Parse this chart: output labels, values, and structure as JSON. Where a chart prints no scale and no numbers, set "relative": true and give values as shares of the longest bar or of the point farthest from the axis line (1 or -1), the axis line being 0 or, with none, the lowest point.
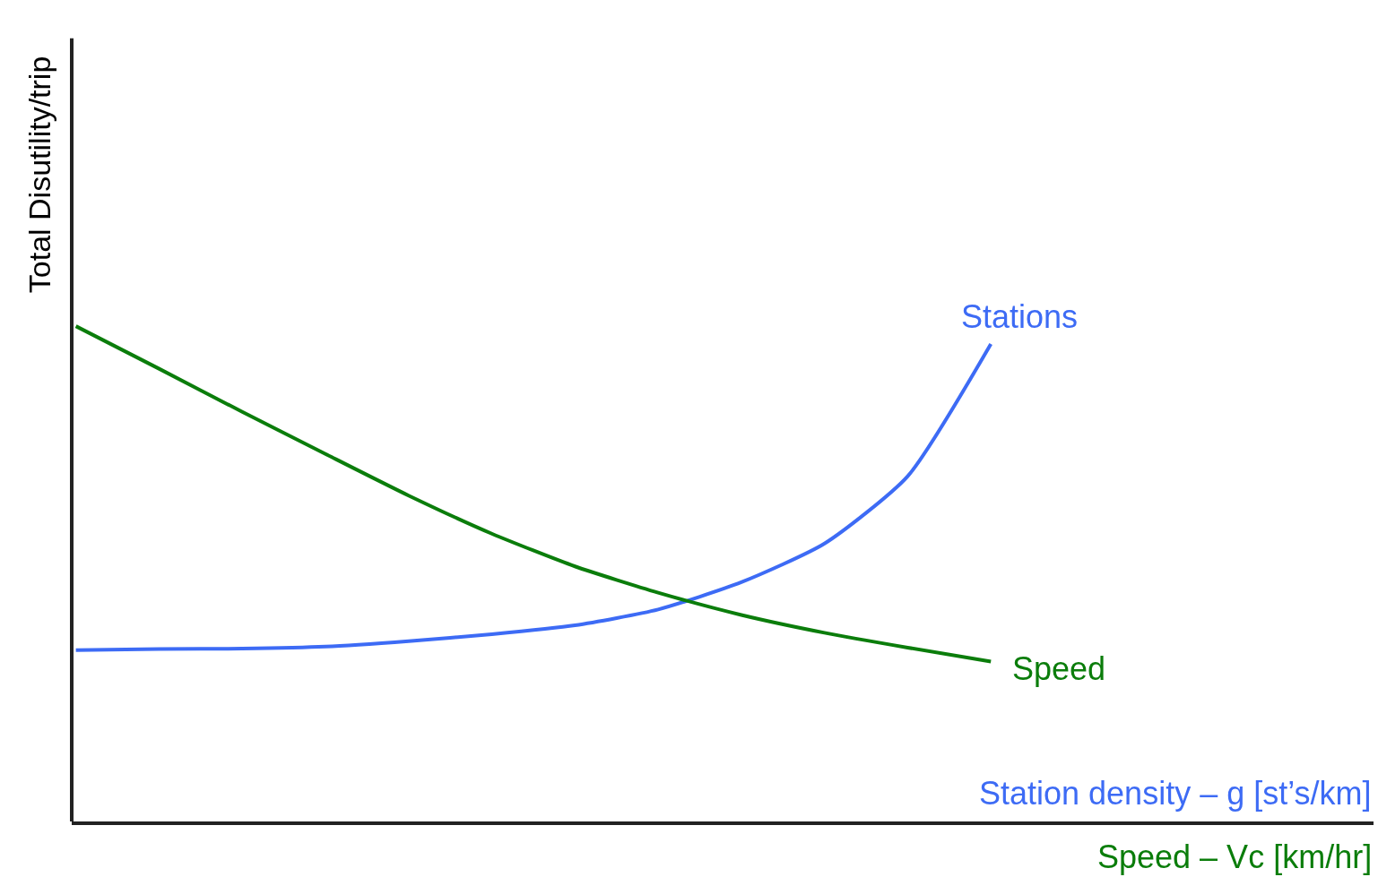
{
  "chart_data": {
    "type": "line",
    "relative": true,
    "ylabel": "Total Disutility/trip",
    "xlabel": "Station density – g [st’s/km]",
    "annotations": [
      "Speed – Vc [km/hr]"
    ],
    "categories": [
      null,
      null,
      null,
      null,
      null,
      null,
      null,
      null,
      null,
      null,
      null,
      null
    ],
    "series": [
      {
        "name": "Stations",
        "color": "#3d6bf5",
        "values": [
          0.346,
          0.348,
          0.349,
          0.353,
          0.364,
          0.378,
          0.396,
          0.428,
          0.483,
          0.561,
          0.697,
          0.964
        ]
      },
      {
        "name": "Speed",
        "color": "#0b7d0b",
        "values": [
          1.0,
          0.914,
          0.827,
          0.742,
          0.658,
          0.581,
          0.515,
          0.462,
          0.417,
          0.381,
          0.351,
          0.323
        ]
      }
    ],
    "legend": false,
    "marker": "none",
    "line_style": "solid"
  }
}
